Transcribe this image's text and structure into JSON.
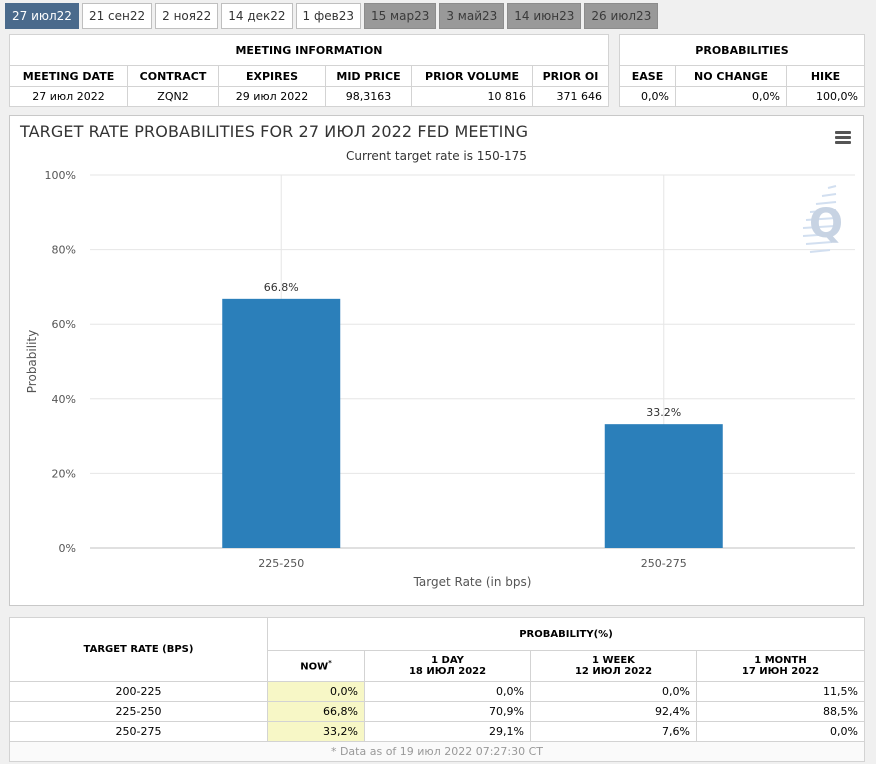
{
  "tabs": [
    {
      "label": "27 июл22",
      "state": "active"
    },
    {
      "label": "21 сен22",
      "state": "normal"
    },
    {
      "label": "2 ноя22",
      "state": "normal"
    },
    {
      "label": "14 дек22",
      "state": "normal"
    },
    {
      "label": "1 фев23",
      "state": "normal"
    },
    {
      "label": "15 мар23",
      "state": "future"
    },
    {
      "label": "3 май23",
      "state": "future"
    },
    {
      "label": "14 июн23",
      "state": "future"
    },
    {
      "label": "26 июл23",
      "state": "future"
    }
  ],
  "meeting_info": {
    "caption": "MEETING INFORMATION",
    "headers": [
      "MEETING DATE",
      "CONTRACT",
      "EXPIRES",
      "MID PRICE",
      "PRIOR VOLUME",
      "PRIOR OI"
    ],
    "row": [
      "27 июл 2022",
      "ZQN2",
      "29 июл 2022",
      "98,3163",
      "10 816",
      "371 646"
    ]
  },
  "probabilities": {
    "caption": "PROBABILITIES",
    "headers": [
      "EASE",
      "NO CHANGE",
      "HIKE"
    ],
    "row": [
      "0,0%",
      "0,0%",
      "100,0%"
    ]
  },
  "chart": {
    "title": "TARGET RATE PROBABILITIES FOR 27 ИЮЛ 2022 FED MEETING",
    "subtitle": "Current target rate is 150-175",
    "logo": "Q",
    "menu_icon": "hamburger-menu-icon"
  },
  "chart_data": {
    "type": "bar",
    "title": "TARGET RATE PROBABILITIES FOR 27 ИЮЛ 2022 FED MEETING",
    "subtitle": "Current target rate is 150-175",
    "categories": [
      "225-250",
      "250-275"
    ],
    "values": [
      66.8,
      33.2
    ],
    "data_labels": [
      "66.8%",
      "33.2%"
    ],
    "xlabel": "Target Rate (in bps)",
    "ylabel": "Probability",
    "ylim": [
      0,
      100
    ],
    "yticks": [
      0,
      20,
      40,
      60,
      80,
      100
    ],
    "ytick_labels": [
      "0%",
      "20%",
      "40%",
      "60%",
      "80%",
      "100%"
    ],
    "grid": true,
    "bar_color": "#2b7fba"
  },
  "rates_table": {
    "header_target": "TARGET RATE (BPS)",
    "header_prob": "PROBABILITY(%)",
    "col_now": "NOW",
    "col_now_mark": "*",
    "col_1day": [
      "1 DAY",
      "18 ИЮЛ 2022"
    ],
    "col_1week": [
      "1 WEEK",
      "12 ИЮЛ 2022"
    ],
    "col_1month": [
      "1 MONTH",
      "17 ИЮН 2022"
    ],
    "rows": [
      [
        "200-225",
        "0,0%",
        "0,0%",
        "0,0%",
        "11,5%"
      ],
      [
        "225-250",
        "66,8%",
        "70,9%",
        "92,4%",
        "88,5%"
      ],
      [
        "250-275",
        "33,2%",
        "29,1%",
        "7,6%",
        "0,0%"
      ]
    ],
    "footnote": "* Data as of 19 июл 2022 07:27:30 CT"
  },
  "colors": {
    "tab_active": "#4a6a8c",
    "tab_future": "#999999",
    "now_highlight": "#f7f7c6",
    "bar": "#2b7fba"
  }
}
